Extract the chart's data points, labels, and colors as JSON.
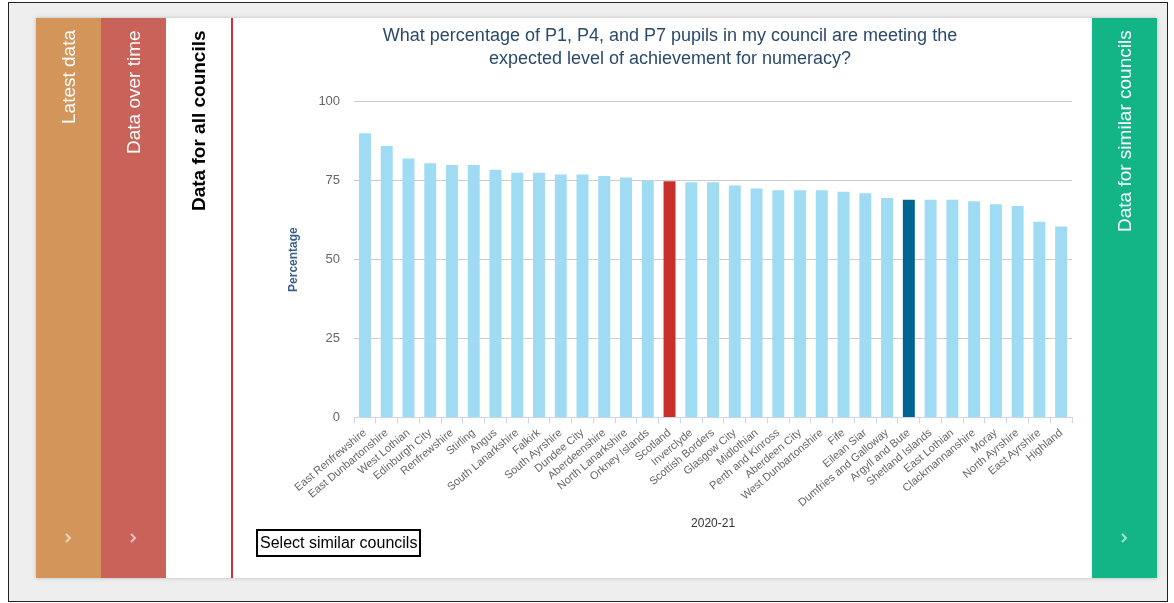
{
  "chart_data": {
    "type": "bar",
    "title": "What percentage of P1, P4, and P7 pupils in my council are meeting the expected level of achievement for numeracy?",
    "xlabel": "2020-21",
    "ylabel": "Percentage",
    "categories": [
      "East Renfrewshire",
      "East Dunbartonshire",
      "West Lothian",
      "Edinburgh City",
      "Renfrewshire",
      "Stirling",
      "Angus",
      "South Lanarkshire",
      "Falkirk",
      "South Ayrshire",
      "Dundee City",
      "Aberdeenshire",
      "North Lanarkshire",
      "Orkney Islands",
      "Scotland",
      "Inverclyde",
      "Scottish Borders",
      "Glasgow City",
      "Midlothian",
      "Perth and Kinross",
      "Aberdeen City",
      "West Dunbartonshire",
      "Fife",
      "Eilean Siar",
      "Dumfries and Galloway",
      "Argyll and Bute",
      "Shetland Islands",
      "East Lothian",
      "Clackmannanshire",
      "Moray",
      "North Ayrshire",
      "East Ayrshire",
      "Highland"
    ],
    "values": [
      90,
      86,
      82,
      80.5,
      80,
      80,
      78.5,
      77.5,
      77.5,
      77,
      77,
      76.5,
      76,
      75,
      74.8,
      74.5,
      74.5,
      73.5,
      72.5,
      72,
      72,
      72,
      71.5,
      71,
      69.5,
      69,
      69,
      69,
      68.5,
      67.5,
      67,
      62,
      60.5
    ],
    "colors": [
      "#a0dbf4",
      "#a0dbf4",
      "#a0dbf4",
      "#a0dbf4",
      "#a0dbf4",
      "#a0dbf4",
      "#a0dbf4",
      "#a0dbf4",
      "#a0dbf4",
      "#a0dbf4",
      "#a0dbf4",
      "#a0dbf4",
      "#a0dbf4",
      "#a0dbf4",
      "#c8302c",
      "#a0dbf4",
      "#a0dbf4",
      "#a0dbf4",
      "#a0dbf4",
      "#a0dbf4",
      "#a0dbf4",
      "#a0dbf4",
      "#a0dbf4",
      "#a0dbf4",
      "#a0dbf4",
      "#006691",
      "#a0dbf4",
      "#a0dbf4",
      "#a0dbf4",
      "#a0dbf4",
      "#a0dbf4",
      "#a0dbf4",
      "#a0dbf4"
    ],
    "ylim": [
      0,
      100
    ],
    "yticks": [
      0,
      25,
      50,
      75,
      100
    ],
    "grid": "y",
    "legend": false,
    "annotations": [
      "Latest data",
      "Data over time",
      "Data for all councils",
      "Data for similar councils",
      "Select similar councils"
    ]
  }
}
